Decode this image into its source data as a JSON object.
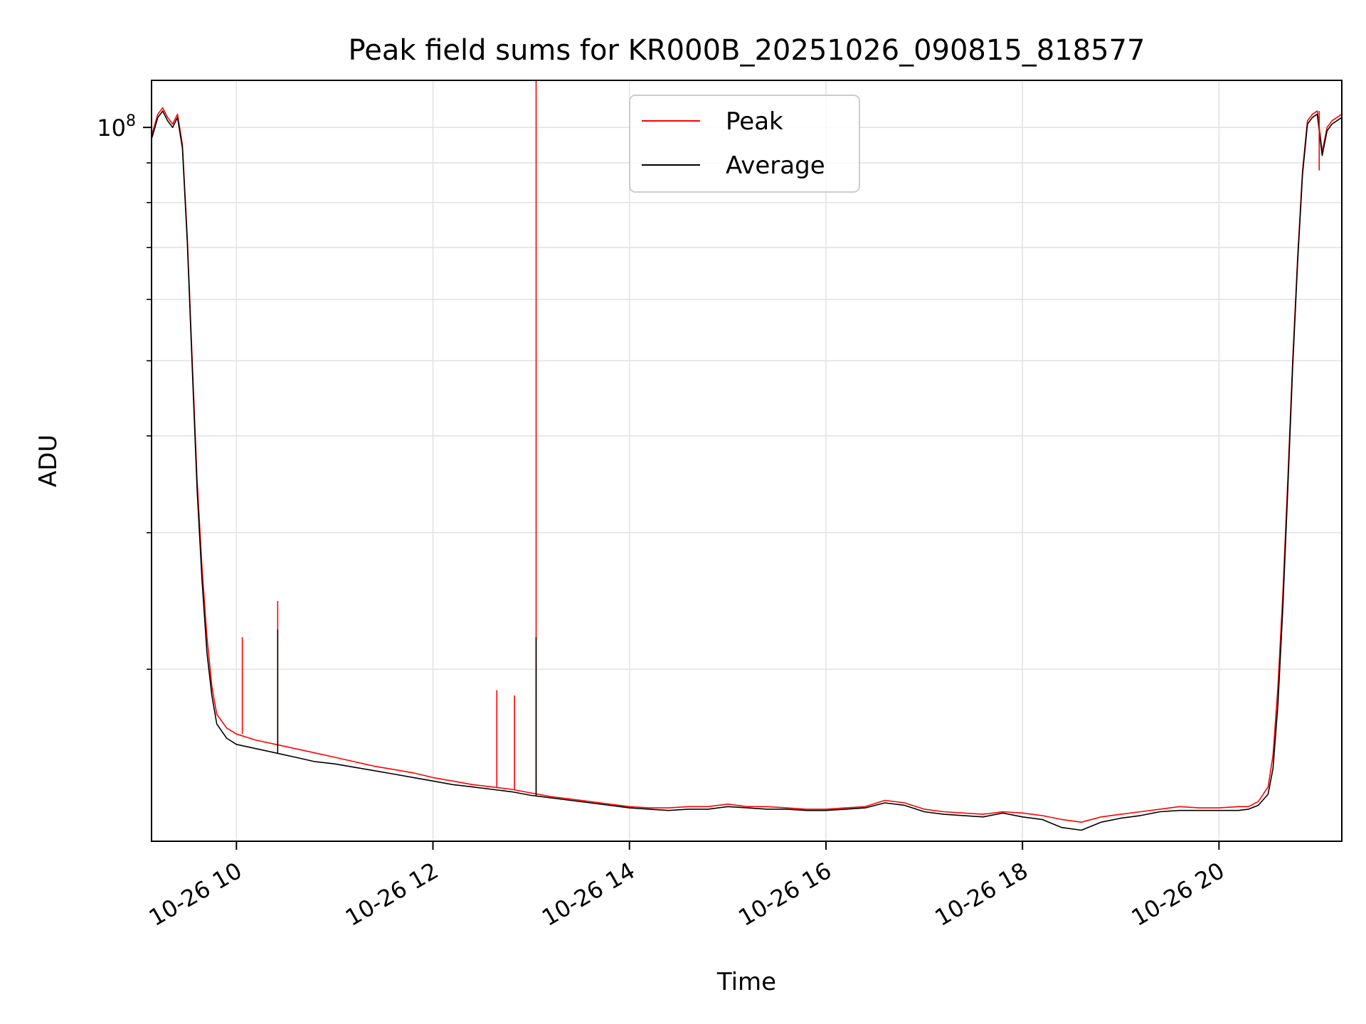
{
  "chart_data": {
    "type": "line",
    "title": "Peak field sums for KR000B_20251026_090815_818577",
    "xlabel": "Time",
    "ylabel": "ADU",
    "yscale": "log",
    "grid": true,
    "legend_position": "upper center",
    "xlim_hours": [
      9.136,
      21.25
    ],
    "ylim": [
      12000000,
      115000000
    ],
    "x_ticks": [
      {
        "value": 10,
        "label": "10-26 10"
      },
      {
        "value": 12,
        "label": "10-26 12"
      },
      {
        "value": 14,
        "label": "10-26 14"
      },
      {
        "value": 16,
        "label": "10-26 16"
      },
      {
        "value": 18,
        "label": "10-26 18"
      },
      {
        "value": 20,
        "label": "10-26 20"
      }
    ],
    "y_major_ticks": [
      {
        "value": 100000000,
        "base": "10",
        "exp": "8"
      }
    ],
    "y_minor_ticks": [
      20000000,
      30000000,
      40000000,
      50000000,
      60000000,
      70000000,
      80000000,
      90000000
    ],
    "series": [
      {
        "name": "Peak",
        "color": "#ff0000",
        "x": [
          9.14,
          9.2,
          9.25,
          9.3,
          9.35,
          9.4,
          9.45,
          9.5,
          9.55,
          9.6,
          9.65,
          9.7,
          9.75,
          9.8,
          9.9,
          10.0,
          10.2,
          10.4,
          10.6,
          10.8,
          11.0,
          11.2,
          11.4,
          11.6,
          11.8,
          12.0,
          12.2,
          12.4,
          12.6,
          12.8,
          13.0,
          13.2,
          13.4,
          13.6,
          13.8,
          14.0,
          14.2,
          14.4,
          14.6,
          14.8,
          15.0,
          15.2,
          15.4,
          15.6,
          15.8,
          16.0,
          16.2,
          16.4,
          16.6,
          16.8,
          17.0,
          17.2,
          17.4,
          17.6,
          17.8,
          18.0,
          18.2,
          18.4,
          18.6,
          18.8,
          19.0,
          19.2,
          19.4,
          19.6,
          19.8,
          20.0,
          20.2,
          20.3,
          20.4,
          20.5,
          20.55,
          20.6,
          20.65,
          20.7,
          20.75,
          20.8,
          20.85,
          20.9,
          20.95,
          21.0,
          21.05,
          21.1,
          21.15,
          21.2,
          21.25
        ],
        "values": [
          98000000,
          104000000,
          106000000,
          103000000,
          101000000,
          104000000,
          95000000,
          72000000,
          50000000,
          35000000,
          27000000,
          22000000,
          19000000,
          17500000,
          16800000,
          16500000,
          16200000,
          16000000,
          15800000,
          15600000,
          15400000,
          15200000,
          15000000,
          14850000,
          14700000,
          14500000,
          14350000,
          14200000,
          14100000,
          14000000,
          13850000,
          13700000,
          13600000,
          13500000,
          13400000,
          13300000,
          13250000,
          13250000,
          13300000,
          13300000,
          13400000,
          13300000,
          13300000,
          13250000,
          13200000,
          13200000,
          13250000,
          13300000,
          13550000,
          13450000,
          13200000,
          13100000,
          13050000,
          13000000,
          13100000,
          13050000,
          12950000,
          12800000,
          12700000,
          12900000,
          13000000,
          13100000,
          13200000,
          13300000,
          13250000,
          13250000,
          13300000,
          13300000,
          13500000,
          14100000,
          15500000,
          19000000,
          25000000,
          35000000,
          50000000,
          68000000,
          88000000,
          102000000,
          104000000,
          105000000,
          93000000,
          100000000,
          102000000,
          103000000,
          104000000
        ]
      },
      {
        "name": "Average",
        "color": "#000000",
        "x": [
          9.14,
          9.2,
          9.25,
          9.3,
          9.35,
          9.4,
          9.45,
          9.5,
          9.55,
          9.6,
          9.65,
          9.7,
          9.75,
          9.8,
          9.9,
          10.0,
          10.2,
          10.4,
          10.6,
          10.8,
          11.0,
          11.2,
          11.4,
          11.6,
          11.8,
          12.0,
          12.2,
          12.4,
          12.6,
          12.8,
          13.0,
          13.2,
          13.4,
          13.6,
          13.8,
          14.0,
          14.2,
          14.4,
          14.6,
          14.8,
          15.0,
          15.2,
          15.4,
          15.6,
          15.8,
          16.0,
          16.2,
          16.4,
          16.6,
          16.8,
          17.0,
          17.2,
          17.4,
          17.6,
          17.8,
          18.0,
          18.2,
          18.4,
          18.6,
          18.8,
          19.0,
          19.2,
          19.4,
          19.6,
          19.8,
          20.0,
          20.2,
          20.3,
          20.4,
          20.5,
          20.55,
          20.6,
          20.65,
          20.7,
          20.75,
          20.8,
          20.85,
          20.9,
          20.95,
          21.0,
          21.05,
          21.1,
          21.15,
          21.2,
          21.25
        ],
        "values": [
          97000000,
          103000000,
          105000000,
          102000000,
          100000000,
          103000000,
          94000000,
          71000000,
          49000000,
          34000000,
          26000000,
          21000000,
          18500000,
          17000000,
          16300000,
          16000000,
          15800000,
          15600000,
          15400000,
          15200000,
          15100000,
          14950000,
          14800000,
          14650000,
          14500000,
          14350000,
          14200000,
          14100000,
          14000000,
          13900000,
          13750000,
          13650000,
          13550000,
          13450000,
          13350000,
          13250000,
          13200000,
          13150000,
          13200000,
          13200000,
          13300000,
          13250000,
          13200000,
          13200000,
          13150000,
          13150000,
          13200000,
          13250000,
          13450000,
          13350000,
          13100000,
          13000000,
          12950000,
          12900000,
          13050000,
          12900000,
          12800000,
          12500000,
          12400000,
          12700000,
          12850000,
          12950000,
          13100000,
          13150000,
          13150000,
          13150000,
          13150000,
          13200000,
          13350000,
          13800000,
          14900000,
          18000000,
          24000000,
          34000000,
          49000000,
          67000000,
          87000000,
          101000000,
          103000000,
          104000000,
          92000000,
          99000000,
          101000000,
          102000000,
          103000000
        ]
      }
    ],
    "annotations": [
      {
        "series": "Peak",
        "type": "spike",
        "x": 13.05,
        "value": 115000000
      },
      {
        "series": "Average",
        "type": "spike",
        "x": 13.05,
        "value": 22000000
      },
      {
        "series": "Peak",
        "type": "spike",
        "x": 10.42,
        "value": 24500000
      },
      {
        "series": "Average",
        "type": "spike",
        "x": 10.42,
        "value": 22500000
      },
      {
        "series": "Peak",
        "type": "spike",
        "x": 10.06,
        "value": 22000000
      },
      {
        "series": "Peak",
        "type": "spike",
        "x": 12.65,
        "value": 18800000
      },
      {
        "series": "Peak",
        "type": "spike",
        "x": 12.83,
        "value": 18500000
      },
      {
        "series": "Peak",
        "type": "spike",
        "x": 21.02,
        "value": 88000000
      }
    ]
  }
}
